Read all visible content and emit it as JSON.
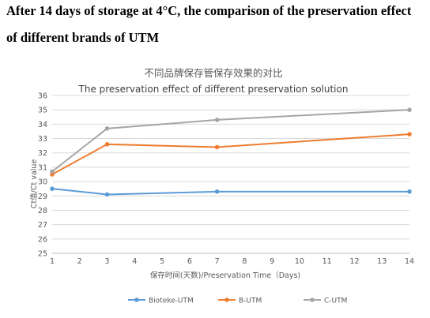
{
  "heading": {
    "line1": "After 14 days of storage at 4°C, the comparison of the preservation effect",
    "line2": "of different brands of UTM"
  },
  "chart_data": {
    "type": "line",
    "title": "不同品牌保存管保存效果的对比",
    "subtitle": "The preservation effect of different preservation solution",
    "xlabel": "保存时间(天数)/Preservation Time（Days)",
    "ylabel": "Ct值/Ct value",
    "x": [
      1,
      3,
      7,
      14
    ],
    "xlim": [
      1,
      14
    ],
    "ylim": [
      25,
      36
    ],
    "xticks": [
      1,
      2,
      3,
      4,
      5,
      6,
      7,
      8,
      9,
      10,
      11,
      12,
      13,
      14
    ],
    "yticks": [
      25,
      26,
      27,
      28,
      29,
      30,
      31,
      32,
      33,
      34,
      35,
      36
    ],
    "grid": true,
    "legend_position": "bottom",
    "series": [
      {
        "name": "Bioteke-UTM",
        "color": "#5b9bd5",
        "values": [
          29.5,
          29.1,
          29.3,
          29.3
        ]
      },
      {
        "name": "B-UTM",
        "color": "#ed7d31",
        "values": [
          30.5,
          32.6,
          32.4,
          33.3
        ]
      },
      {
        "name": "C-UTM",
        "color": "#a5a5a5",
        "values": [
          30.7,
          33.7,
          34.3,
          35.0
        ]
      }
    ]
  }
}
